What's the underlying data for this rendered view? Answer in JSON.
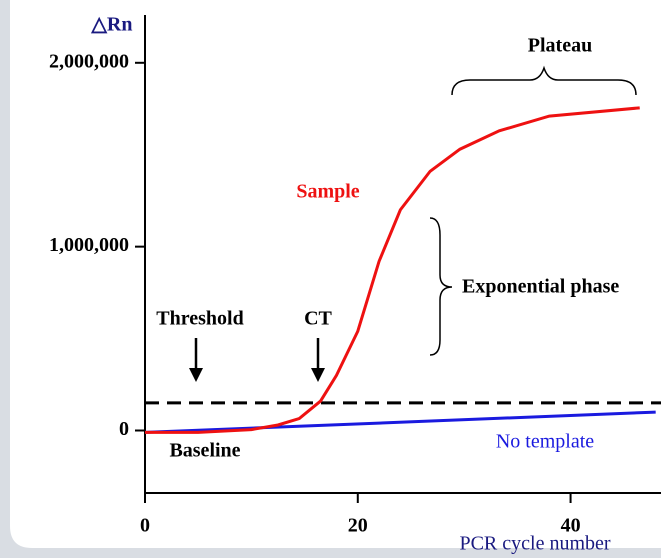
{
  "chart_data": {
    "type": "line",
    "y_label": "△Rn",
    "x_label": "PCR cycle number",
    "xlim": [
      0,
      48.5
    ],
    "ylim": [
      -340000,
      2260000
    ],
    "xticks": [
      0,
      20,
      40
    ],
    "yticks": [
      0,
      {
        "value": 1000000,
        "label": "1,000,000"
      },
      {
        "value": 2000000,
        "label": "2,000,000"
      }
    ],
    "threshold": 150000,
    "series": [
      {
        "name": "Sample",
        "color": "#ee1111",
        "x": [
          0,
          5,
          10,
          12.5,
          14.5,
          16.5,
          18,
          20,
          22,
          24,
          26.8,
          29.6,
          33.3,
          38,
          46.5
        ],
        "values": [
          -10000,
          -10000,
          5000,
          30000,
          65000,
          160000,
          300000,
          540000,
          920000,
          1200000,
          1410000,
          1530000,
          1630000,
          1710000,
          1755000
        ]
      },
      {
        "name": "No template",
        "color": "#1a1adf",
        "x": [
          0,
          48
        ],
        "values": [
          -10000,
          100000
        ]
      }
    ],
    "annotations": [
      "Plateau",
      "Exponential phase",
      "Threshold",
      "CT",
      "Baseline"
    ]
  }
}
